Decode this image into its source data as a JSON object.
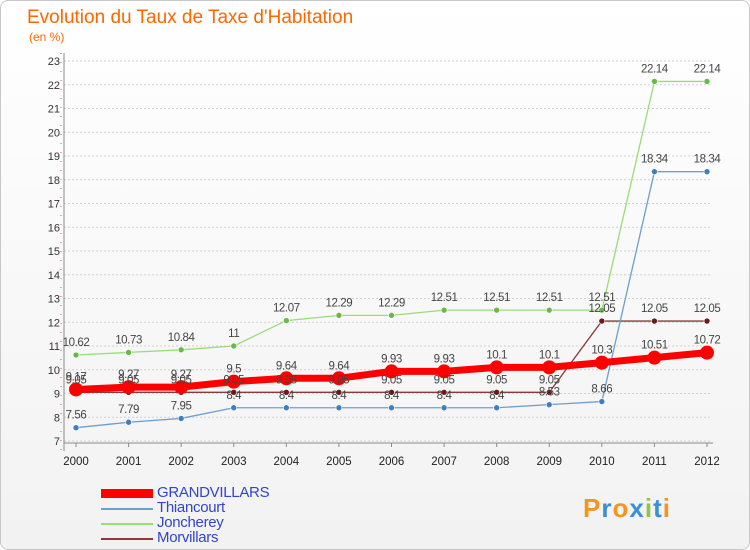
{
  "title": "Evolution du Taux de Taxe d'Habitation",
  "unit": "(en %)",
  "logo": "Proxiti",
  "colors": {
    "title": "#ff6600",
    "grid": "#d0d0d0",
    "axis": "#8a8a8a",
    "legend_text": "#3344cc"
  },
  "chart_data": {
    "type": "line",
    "title": "Evolution du Taux de Taxe d'Habitation",
    "ylabel": "(en %)",
    "x": [
      "2000",
      "2001",
      "2002",
      "2003",
      "2004",
      "2005",
      "2006",
      "2007",
      "2008",
      "2009",
      "2010",
      "2011",
      "2012"
    ],
    "ylim": [
      7,
      23
    ],
    "yticks": [
      7,
      8,
      9,
      10,
      11,
      12,
      13,
      14,
      15,
      16,
      17,
      18,
      19,
      20,
      21,
      22,
      23
    ],
    "grid": "horizontal",
    "legend_position": "bottom-left",
    "series": [
      {
        "name": "GRANDVILLARS",
        "color": "#ff0000",
        "line_width": 7,
        "marker_radius": 7,
        "values": [
          9.17,
          9.27,
          9.27,
          9.5,
          9.64,
          9.64,
          9.93,
          9.93,
          10.1,
          10.1,
          10.3,
          10.51,
          10.72
        ],
        "labels": [
          "9.17",
          "9.27",
          "9.27",
          "9.5",
          "9.64",
          "9.64",
          "9.93",
          "9.93",
          "10.1",
          "10.1",
          "10.3",
          "10.51",
          "10.72"
        ]
      },
      {
        "name": "Thiancourt",
        "color": "#6d9fcf",
        "dot_color": "#3f7fbf",
        "line_width": 1.3,
        "marker_radius": 3,
        "values": [
          7.56,
          7.79,
          7.95,
          8.4,
          8.4,
          8.4,
          8.4,
          8.4,
          8.4,
          8.53,
          8.66,
          18.34,
          18.34
        ],
        "labels": [
          "7.56",
          "7.79",
          "7.95",
          "8.4",
          "8.4",
          "8.4",
          "8.4",
          "8.4",
          "8.4",
          "8.53",
          "8.66",
          "18.34",
          "18.34"
        ]
      },
      {
        "name": "Joncherey",
        "color": "#99dd77",
        "dot_color": "#66bb44",
        "line_width": 1.3,
        "marker_radius": 3,
        "values": [
          10.62,
          10.73,
          10.84,
          11,
          12.07,
          12.29,
          12.29,
          12.51,
          12.51,
          12.51,
          12.51,
          22.14,
          22.14
        ],
        "labels": [
          "10.62",
          "10.73",
          "10.84",
          "11",
          "12.07",
          "12.29",
          "12.29",
          "12.51",
          "12.51",
          "12.51",
          "12.51",
          "22.14",
          "22.14"
        ]
      },
      {
        "name": "Morvillars",
        "color": "#8b3a3a",
        "dot_color": "#6b1a1a",
        "line_width": 1.3,
        "marker_radius": 3,
        "values": [
          9.05,
          9.05,
          9.05,
          9.05,
          9.05,
          9.05,
          9.05,
          9.05,
          9.05,
          9.05,
          12.05,
          12.05,
          12.05
        ],
        "labels": [
          "9.05",
          "9.05",
          "9.05",
          "9.05",
          "9.05",
          "9.05",
          "9.05",
          "9.05",
          "9.05",
          "9.05",
          "12.05",
          "12.05",
          "12.05"
        ]
      }
    ]
  }
}
